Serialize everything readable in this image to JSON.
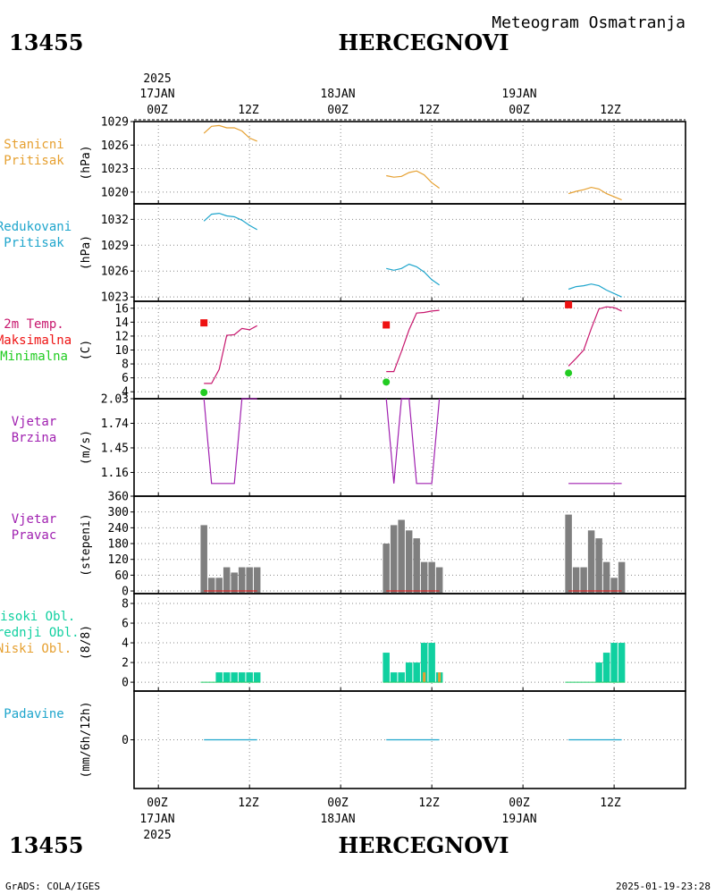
{
  "header": {
    "station_id": "13455",
    "station_name": "HERCEGNOVI",
    "subtitle": "Meteogram Osmatranja",
    "year": "2025"
  },
  "footer": {
    "left": "GrADS: COLA/IGES",
    "right": "2025-01-19-23:28"
  },
  "time_axis": {
    "top_dates": [
      "17JAN",
      "18JAN",
      "19JAN"
    ],
    "bottom_dates": [
      "17JAN",
      "18JAN",
      "19JAN"
    ],
    "hour_labels": [
      "00Z",
      "12Z",
      "00Z",
      "12Z",
      "00Z",
      "12Z"
    ],
    "hour_ticks": [
      0,
      12,
      24,
      36,
      48,
      60
    ]
  },
  "colors": {
    "pressure_station": "#e6a030",
    "pressure_reduced": "#1ea5cc",
    "temperature": "#c8186e",
    "tmax": "#ee1111",
    "tmin": "#22cc22",
    "wind": "#a020b0",
    "bars_gray": "#7f7f7f",
    "cloud_high": "#10d0a0",
    "cloud_mid": "#22cc66",
    "cloud_low": "#e6a030",
    "precip": "#1ea5cc"
  },
  "chart_data": [
    {
      "id": "stanicni",
      "type": "line",
      "labels": [
        "Stanicni",
        "Pritisak"
      ],
      "unit": "(hPa)",
      "ylim": [
        1018.5,
        1029
      ],
      "yticks": [
        1020,
        1023,
        1026,
        1029
      ],
      "series": [
        {
          "segments": [
            {
              "x": [
                6,
                7,
                8,
                9,
                10,
                11,
                12,
                13
              ],
              "y": [
                1027.5,
                1028.4,
                1028.5,
                1028.2,
                1028.2,
                1027.8,
                1026.9,
                1026.5
              ]
            },
            {
              "x": [
                30,
                31,
                32,
                33,
                34,
                35,
                36,
                37
              ],
              "y": [
                1022.1,
                1021.9,
                1022.0,
                1022.5,
                1022.7,
                1022.2,
                1021.2,
                1020.5
              ]
            },
            {
              "x": [
                54,
                55,
                56,
                57,
                58,
                59,
                60,
                61
              ],
              "y": [
                1019.8,
                1020.1,
                1020.3,
                1020.6,
                1020.4,
                1019.8,
                1019.4,
                1019.0
              ]
            }
          ]
        }
      ]
    },
    {
      "id": "redukovani",
      "type": "line",
      "labels": [
        "Redukovani",
        "Pritisak"
      ],
      "unit": "(hPa)",
      "ylim": [
        1022.5,
        1033.8
      ],
      "yticks": [
        1023,
        1026,
        1029,
        1032
      ],
      "series": [
        {
          "segments": [
            {
              "x": [
                6,
                7,
                8,
                9,
                10,
                11,
                12,
                13
              ],
              "y": [
                1031.8,
                1032.6,
                1032.7,
                1032.4,
                1032.3,
                1031.9,
                1031.3,
                1030.8
              ]
            },
            {
              "x": [
                30,
                31,
                32,
                33,
                34,
                35,
                36,
                37
              ],
              "y": [
                1026.3,
                1026.1,
                1026.3,
                1026.8,
                1026.5,
                1025.9,
                1025.0,
                1024.4
              ]
            },
            {
              "x": [
                54,
                55,
                56,
                57,
                58,
                59,
                60,
                61
              ],
              "y": [
                1023.9,
                1024.2,
                1024.3,
                1024.5,
                1024.3,
                1023.8,
                1023.4,
                1023.0
              ]
            }
          ]
        }
      ]
    },
    {
      "id": "temperatura",
      "type": "line",
      "labels": [
        "2m Temp.",
        "Maksimalna",
        "Minimalna"
      ],
      "unit": "(C)",
      "ylim": [
        3,
        17
      ],
      "yticks": [
        4,
        6,
        8,
        10,
        12,
        14,
        16
      ],
      "series": [
        {
          "segments": [
            {
              "x": [
                6,
                7,
                8,
                9,
                10,
                11,
                12,
                13
              ],
              "y": [
                5.2,
                5.2,
                7.2,
                12.1,
                12.2,
                13.1,
                12.9,
                13.5
              ]
            },
            {
              "x": [
                30,
                31,
                32,
                33,
                34,
                35,
                36,
                37
              ],
              "y": [
                6.9,
                6.9,
                9.8,
                12.9,
                15.3,
                15.4,
                15.6,
                15.7
              ]
            },
            {
              "x": [
                54,
                55,
                56,
                57,
                58,
                59,
                60,
                61
              ],
              "y": [
                7.7,
                8.8,
                10.0,
                13.1,
                15.9,
                16.2,
                16.1,
                15.6
              ]
            }
          ]
        }
      ],
      "tmax": {
        "x": [
          6,
          30,
          54
        ],
        "y": [
          13.9,
          13.6,
          16.5
        ]
      },
      "tmin": {
        "x": [
          6,
          30,
          54
        ],
        "y": [
          3.9,
          5.4,
          6.7
        ]
      }
    },
    {
      "id": "vjetar_brzina",
      "type": "line",
      "labels": [
        "Vjetar",
        "Brzina"
      ],
      "unit": "(m/s)",
      "ylim": [
        0.88,
        2.03
      ],
      "yticks": [
        1.16,
        1.45,
        1.74,
        2.03
      ],
      "yticklabels": [
        "1.16",
        "1.45",
        "1.74",
        "2.03"
      ],
      "series": [
        {
          "segments": [
            {
              "x": [
                6,
                7,
                8,
                9,
                10,
                11,
                12,
                13
              ],
              "y": [
                2.03,
                1.03,
                1.03,
                1.03,
                1.03,
                2.03,
                2.03,
                2.03
              ]
            },
            {
              "x": [
                30,
                31,
                32,
                33,
                34,
                35,
                36,
                37
              ],
              "y": [
                2.03,
                1.03,
                2.03,
                2.03,
                1.03,
                1.03,
                1.03,
                2.03
              ]
            },
            {
              "x": [
                54,
                55,
                56,
                57,
                58,
                59,
                60,
                61
              ],
              "y": [
                1.03,
                1.03,
                1.03,
                1.03,
                1.03,
                1.03,
                1.03,
                1.03
              ]
            }
          ]
        }
      ]
    },
    {
      "id": "vjetar_pravac",
      "type": "bar",
      "labels": [
        "Vjetar",
        "Pravac"
      ],
      "unit": "(stepeni)",
      "ylim": [
        -10,
        360
      ],
      "yticks": [
        0,
        60,
        120,
        180,
        240,
        300,
        360
      ],
      "x": [
        6,
        7,
        8,
        9,
        10,
        11,
        12,
        13,
        30,
        31,
        32,
        33,
        34,
        35,
        36,
        37,
        54,
        55,
        56,
        57,
        58,
        59,
        60,
        61
      ],
      "values": [
        250,
        50,
        50,
        90,
        70,
        90,
        90,
        90,
        180,
        250,
        270,
        230,
        200,
        110,
        110,
        90,
        290,
        90,
        90,
        230,
        200,
        110,
        50,
        110
      ],
      "baseline": {
        "x": [
          6,
          13,
          30,
          37,
          54,
          61
        ],
        "y": 0
      }
    },
    {
      "id": "oblacnost",
      "type": "bar",
      "labels": [
        "Visoki Obl.",
        "Srednji Obl.",
        "Niski Obl."
      ],
      "unit": "(8/8)",
      "ylim": [
        -0.9,
        9
      ],
      "yticks": [
        0,
        2,
        4,
        6,
        8
      ],
      "x": [
        6,
        7,
        8,
        9,
        10,
        11,
        12,
        13,
        30,
        31,
        32,
        33,
        34,
        35,
        36,
        37,
        54,
        55,
        56,
        57,
        58,
        59,
        60,
        61
      ],
      "high": [
        0,
        0,
        1,
        1,
        1,
        1,
        1,
        1,
        3,
        1,
        1,
        2,
        2,
        4,
        4,
        1,
        0,
        0,
        0,
        0,
        2,
        3,
        4,
        4
      ],
      "low": [
        0,
        0,
        0,
        0,
        0,
        0,
        0,
        0,
        0,
        0,
        0,
        0,
        0,
        1,
        0,
        1,
        0,
        0,
        0,
        0,
        0,
        0,
        0,
        0
      ]
    },
    {
      "id": "padavine",
      "type": "line",
      "labels": [
        "Padavine"
      ],
      "unit": "(mm/6h/12h)",
      "ylim": [
        -5,
        5
      ],
      "yticks": [
        0
      ],
      "series": [
        {
          "segments": [
            {
              "x": [
                6,
                13
              ],
              "y": [
                0,
                0
              ]
            },
            {
              "x": [
                30,
                37
              ],
              "y": [
                0,
                0
              ]
            },
            {
              "x": [
                54,
                61
              ],
              "y": [
                0,
                0
              ]
            }
          ]
        }
      ]
    }
  ]
}
